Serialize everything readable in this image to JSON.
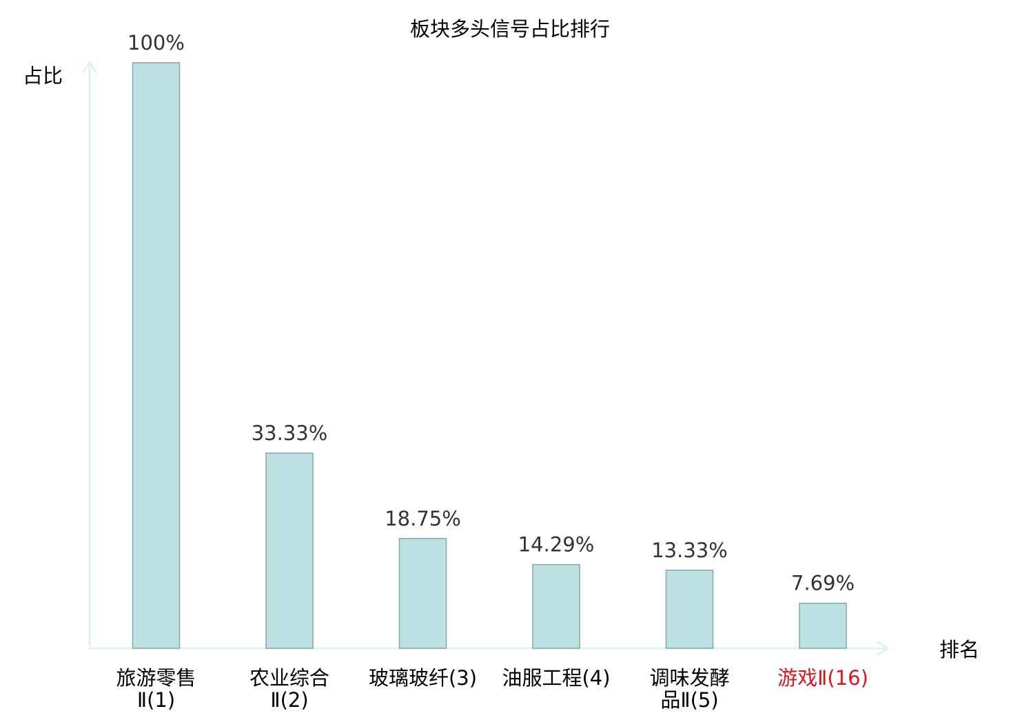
{
  "chart_data": {
    "type": "bar",
    "title": "板块多头信号占比排行",
    "ylabel": "占比",
    "xlabel": "排名",
    "categories": [
      [
        "旅游零售",
        "Ⅱ(1)"
      ],
      [
        "农业综合",
        "Ⅱ(2)"
      ],
      [
        "玻璃玻纤(3)"
      ],
      [
        "油服工程(4)"
      ],
      [
        "调味发酵",
        "品Ⅱ(5)"
      ],
      [
        "游戏Ⅱ(16)"
      ]
    ],
    "values": [
      100,
      33.33,
      18.75,
      14.29,
      13.33,
      7.69
    ],
    "value_labels": [
      "100%",
      "33.33%",
      "18.75%",
      "14.29%",
      "13.33%",
      "7.69%"
    ],
    "highlight_index": 5,
    "ylim": [
      0,
      100
    ],
    "grid": false,
    "colors": {
      "bar_fill": "#bde0e3",
      "bar_stroke": "#83a7aa",
      "axis": "#e0f3f0",
      "text": "#333333",
      "label": "#000000",
      "highlight": "#e0141c"
    }
  }
}
